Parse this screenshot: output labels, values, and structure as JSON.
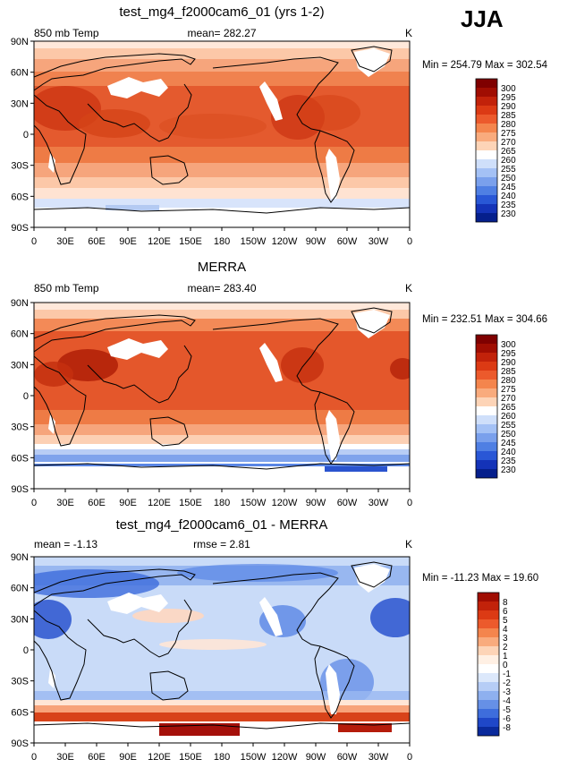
{
  "season": "JJA",
  "panels": [
    {
      "id": "model",
      "title": "test_mg4_f2000cam6_01 (yrs 1-2)",
      "left_label": "850 mb Temp",
      "center_label": "mean= 282.27",
      "units": "K",
      "minmax": "Min = 254.79 Max = 302.54",
      "colorbar_labels": [
        "300",
        "295",
        "290",
        "285",
        "280",
        "275",
        "270",
        "265",
        "260",
        "255",
        "250",
        "245",
        "240",
        "235",
        "230"
      ],
      "colorbar_colors": [
        "#7f0000",
        "#a00d02",
        "#c2220a",
        "#dc3a14",
        "#ec5a2c",
        "#f4854d",
        "#f9ab7d",
        "#fdd4b7",
        "#ffffff",
        "#cfdffa",
        "#a4c1f5",
        "#7aa0ec",
        "#4f7fe3",
        "#2957d6",
        "#1433b8",
        "#051f8c"
      ]
    },
    {
      "id": "obs",
      "title": "MERRA",
      "left_label": "850 mb Temp",
      "center_label": "mean= 283.40",
      "units": "K",
      "minmax": "Min = 232.51 Max = 304.66",
      "colorbar_labels": [
        "300",
        "295",
        "290",
        "285",
        "280",
        "275",
        "270",
        "265",
        "260",
        "255",
        "250",
        "245",
        "240",
        "235",
        "230"
      ],
      "colorbar_colors": [
        "#7f0000",
        "#a00d02",
        "#c2220a",
        "#dc3a14",
        "#ec5a2c",
        "#f4854d",
        "#f9ab7d",
        "#fdd4b7",
        "#ffffff",
        "#cfdffa",
        "#a4c1f5",
        "#7aa0ec",
        "#4f7fe3",
        "#2957d6",
        "#1433b8",
        "#051f8c"
      ]
    },
    {
      "id": "diff",
      "title": "test_mg4_f2000cam6_01 - MERRA",
      "left_label": "mean = -1.13",
      "center_label": "rmse = 2.81",
      "units": "K",
      "minmax": "Min = -11.23 Max = 19.60",
      "colorbar_labels": [
        "8",
        "6",
        "5",
        "4",
        "3",
        "2",
        "1",
        "0",
        "-1",
        "-2",
        "-3",
        "-4",
        "-5",
        "-6",
        "-8"
      ],
      "colorbar_colors": [
        "#a00d02",
        "#c2220a",
        "#dc3a14",
        "#ec5a2c",
        "#f4854d",
        "#f9ab7d",
        "#fdd4b7",
        "#fff0e4",
        "#ffffff",
        "#dce8fb",
        "#b6cdf6",
        "#8eb0ef",
        "#6690e6",
        "#3e6ddc",
        "#1f47c8",
        "#0a2a9c"
      ]
    }
  ],
  "map_axes": {
    "lat_labels": [
      "90N",
      "60N",
      "30N",
      "0",
      "30S",
      "60S",
      "90S"
    ],
    "lon_labels": [
      "0",
      "30E",
      "60E",
      "90E",
      "120E",
      "150E",
      "180",
      "150W",
      "120W",
      "90W",
      "60W",
      "30W",
      "0"
    ]
  },
  "colors": {
    "warm_base": "#e45a2e",
    "warm_deep": "#c8300f",
    "warm_light": "#f7a37a",
    "cold": "#4f7fe3",
    "diff_base": "#c9dbf8",
    "land_white": "#ffffff"
  }
}
